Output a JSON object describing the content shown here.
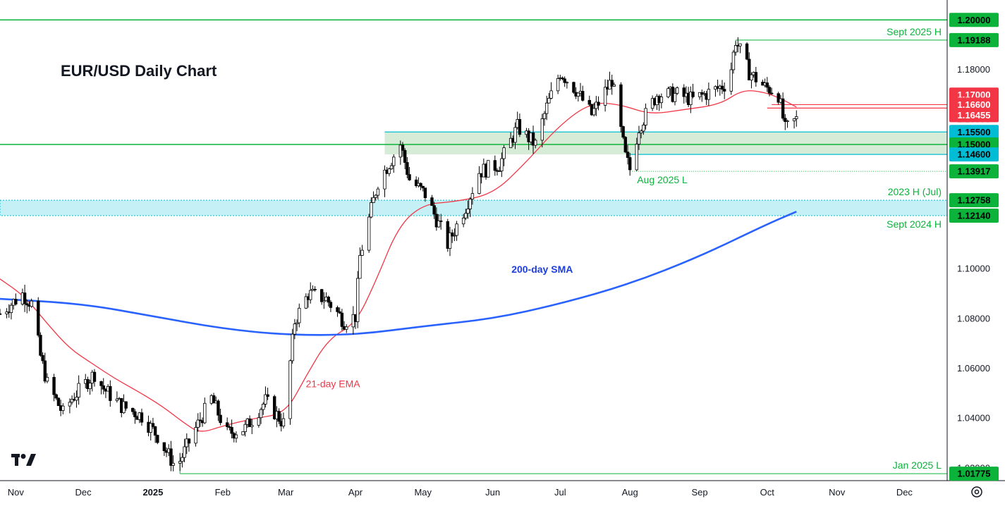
{
  "chart_data": {
    "type": "candlestick",
    "title": "EUR/USD Daily Chart",
    "ylim": [
      1.015,
      1.208
    ],
    "xlim": [
      "2024-10-25",
      "2025-12-20"
    ],
    "y_ticks": [
      "1.20000",
      "1.18000",
      "1.16000",
      "1.14000",
      "1.12000",
      "1.10000",
      "1.08000",
      "1.06000",
      "1.04000",
      "1.02000"
    ],
    "x_ticks": [
      {
        "date": "2024-11-01",
        "label": "Nov",
        "bold": false
      },
      {
        "date": "2024-12-01",
        "label": "Dec",
        "bold": false
      },
      {
        "date": "2025-01-01",
        "label": "2025",
        "bold": true
      },
      {
        "date": "2025-02-01",
        "label": "Feb",
        "bold": false
      },
      {
        "date": "2025-03-01",
        "label": "Mar",
        "bold": false
      },
      {
        "date": "2025-04-01",
        "label": "Apr",
        "bold": false
      },
      {
        "date": "2025-05-01",
        "label": "May",
        "bold": false
      },
      {
        "date": "2025-06-01",
        "label": "Jun",
        "bold": false
      },
      {
        "date": "2025-07-01",
        "label": "Jul",
        "bold": false
      },
      {
        "date": "2025-08-01",
        "label": "Aug",
        "bold": false
      },
      {
        "date": "2025-09-01",
        "label": "Sep",
        "bold": false
      },
      {
        "date": "2025-10-01",
        "label": "Oct",
        "bold": false
      },
      {
        "date": "2025-11-01",
        "label": "Nov",
        "bold": false
      },
      {
        "date": "2025-12-01",
        "label": "Dec",
        "bold": false
      }
    ],
    "price_path": [
      [
        "2024-10-25",
        1.082
      ],
      [
        "2024-11-04",
        1.09
      ],
      [
        "2024-11-08",
        1.086
      ],
      [
        "2024-11-12",
        1.065
      ],
      [
        "2024-11-15",
        1.054
      ],
      [
        "2024-11-22",
        1.042
      ],
      [
        "2024-11-26",
        1.048
      ],
      [
        "2024-12-06",
        1.058
      ],
      [
        "2024-12-10",
        1.052
      ],
      [
        "2024-12-18",
        1.045
      ],
      [
        "2024-12-27",
        1.041
      ],
      [
        "2025-01-03",
        1.033
      ],
      [
        "2025-01-10",
        1.022
      ],
      [
        "2025-01-13",
        1.023
      ],
      [
        "2025-01-20",
        1.036
      ],
      [
        "2025-01-27",
        1.048
      ],
      [
        "2025-02-03",
        1.034
      ],
      [
        "2025-02-11",
        1.036
      ],
      [
        "2025-02-20",
        1.047
      ],
      [
        "2025-02-28",
        1.038
      ],
      [
        "2025-03-05",
        1.079
      ],
      [
        "2025-03-11",
        1.09
      ],
      [
        "2025-03-19",
        1.088
      ],
      [
        "2025-03-27",
        1.079
      ],
      [
        "2025-04-01",
        1.081
      ],
      [
        "2025-04-03",
        1.105
      ],
      [
        "2025-04-11",
        1.135
      ],
      [
        "2025-04-21",
        1.15
      ],
      [
        "2025-04-25",
        1.136
      ],
      [
        "2025-05-02",
        1.13
      ],
      [
        "2025-05-12",
        1.11
      ],
      [
        "2025-05-20",
        1.125
      ],
      [
        "2025-05-26",
        1.139
      ],
      [
        "2025-06-04",
        1.142
      ],
      [
        "2025-06-12",
        1.157
      ],
      [
        "2025-06-20",
        1.15
      ],
      [
        "2025-06-25",
        1.165
      ],
      [
        "2025-07-01",
        1.179
      ],
      [
        "2025-07-08",
        1.172
      ],
      [
        "2025-07-15",
        1.162
      ],
      [
        "2025-07-24",
        1.176
      ],
      [
        "2025-07-30",
        1.145
      ],
      [
        "2025-08-01",
        1.14
      ],
      [
        "2025-08-05",
        1.157
      ],
      [
        "2025-08-13",
        1.17
      ],
      [
        "2025-08-22",
        1.17
      ],
      [
        "2025-08-29",
        1.168
      ],
      [
        "2025-09-08",
        1.172
      ],
      [
        "2025-09-14",
        1.175
      ],
      [
        "2025-09-17",
        1.1919
      ],
      [
        "2025-09-23",
        1.179
      ],
      [
        "2025-09-30",
        1.173
      ],
      [
        "2025-10-03",
        1.172
      ],
      [
        "2025-10-06",
        1.17
      ],
      [
        "2025-10-09",
        1.156
      ],
      [
        "2025-10-14",
        1.16
      ]
    ],
    "series": [
      {
        "name": "21-day EMA",
        "color": "#f23645",
        "values": [
          [
            "2024-10-25",
            1.096
          ],
          [
            "2024-11-05",
            1.089
          ],
          [
            "2024-11-15",
            1.078
          ],
          [
            "2024-11-25",
            1.068
          ],
          [
            "2024-12-05",
            1.062
          ],
          [
            "2024-12-15",
            1.056
          ],
          [
            "2024-12-25",
            1.051
          ],
          [
            "2025-01-05",
            1.045
          ],
          [
            "2025-01-15",
            1.038
          ],
          [
            "2025-01-22",
            1.034
          ],
          [
            "2025-02-01",
            1.037
          ],
          [
            "2025-02-15",
            1.04
          ],
          [
            "2025-03-01",
            1.042
          ],
          [
            "2025-03-10",
            1.057
          ],
          [
            "2025-03-20",
            1.072
          ],
          [
            "2025-04-01",
            1.078
          ],
          [
            "2025-04-10",
            1.095
          ],
          [
            "2025-04-20",
            1.117
          ],
          [
            "2025-05-01",
            1.126
          ],
          [
            "2025-05-15",
            1.127
          ],
          [
            "2025-06-01",
            1.13
          ],
          [
            "2025-06-15",
            1.142
          ],
          [
            "2025-07-01",
            1.158
          ],
          [
            "2025-07-15",
            1.167
          ],
          [
            "2025-07-28",
            1.166
          ],
          [
            "2025-08-10",
            1.162
          ],
          [
            "2025-08-25",
            1.164
          ],
          [
            "2025-09-10",
            1.166
          ],
          [
            "2025-09-20",
            1.172
          ],
          [
            "2025-09-30",
            1.171
          ],
          [
            "2025-10-08",
            1.168
          ],
          [
            "2025-10-14",
            1.165
          ]
        ]
      },
      {
        "name": "200-day SMA",
        "color": "#2962ff",
        "values": [
          [
            "2024-10-25",
            1.088
          ],
          [
            "2024-12-01",
            1.086
          ],
          [
            "2025-01-01",
            1.081
          ],
          [
            "2025-02-01",
            1.076
          ],
          [
            "2025-03-01",
            1.0735
          ],
          [
            "2025-04-01",
            1.0735
          ],
          [
            "2025-05-01",
            1.077
          ],
          [
            "2025-06-01",
            1.08
          ],
          [
            "2025-07-01",
            1.086
          ],
          [
            "2025-08-01",
            1.094
          ],
          [
            "2025-09-01",
            1.105
          ],
          [
            "2025-10-01",
            1.118
          ],
          [
            "2025-10-14",
            1.123
          ]
        ]
      }
    ],
    "series_labels": [
      {
        "text": "21-day EMA",
        "color": "#f23645",
        "date": "2025-03-22",
        "price": 1.0525
      },
      {
        "text": "200-day SMA",
        "color": "#1e3fd6",
        "date": "2025-06-23",
        "price": 1.0985
      }
    ],
    "horizontal_lines": [
      {
        "price": 1.2,
        "color": "#0bb33b",
        "from": "2024-10-25",
        "to": "2025-12-20",
        "width": 1.5
      },
      {
        "price": 1.15,
        "color": "#0bb33b",
        "from": "2024-10-25",
        "to": "2025-12-20",
        "width": 1.5
      },
      {
        "price": 1.1919,
        "color": "#0bb33b",
        "from": "2025-09-17",
        "to": "2025-12-20",
        "width": 1
      },
      {
        "price": 1.155,
        "color": "#00bcd4",
        "from": "2025-04-14",
        "to": "2025-12-20",
        "width": 1.2
      },
      {
        "price": 1.146,
        "color": "#00bcd4",
        "from": "2025-08-01",
        "to": "2025-12-20",
        "width": 1.2
      },
      {
        "price": 1.166,
        "color": "#f23645",
        "from": "2025-10-03",
        "to": "2025-12-20",
        "width": 1.2
      },
      {
        "price": 1.1646,
        "color": "#f23645",
        "from": "2025-10-01",
        "to": "2025-12-20",
        "width": 1.2
      },
      {
        "price": 1.1392,
        "color": "#0bb33b",
        "from": "2025-08-01",
        "to": "2025-12-20",
        "width": 1,
        "dash": "1,2"
      },
      {
        "price": 1.0178,
        "color": "#0bb33b",
        "from": "2025-01-13",
        "to": "2025-12-20",
        "width": 1
      }
    ],
    "zones": [
      {
        "from_price": 1.146,
        "to_price": 1.155,
        "from": "2025-04-14",
        "to": "2025-12-20",
        "fill": "#c8e6c9",
        "stroke": ""
      },
      {
        "from_price": 1.1214,
        "to_price": 1.1276,
        "from": "2024-10-25",
        "to": "2025-12-20",
        "fill": "#b2ebf2",
        "stroke": "#00bcd4"
      }
    ],
    "level_annotations": [
      {
        "text": "Sept 2025 H",
        "price": 1.1919
      },
      {
        "text": "Aug 2025 L",
        "price": 1.1392,
        "date": "2025-08-01"
      },
      {
        "text": "2023 H (Jul)",
        "price": 1.1276
      },
      {
        "text": "Sept 2024 H",
        "price": 1.1214
      },
      {
        "text": "Jan 2025 L",
        "price": 1.0178
      }
    ],
    "price_tags": [
      {
        "label": "1.20000",
        "price": 1.2,
        "bg": "#0bb33b",
        "fg": "#000000"
      },
      {
        "label": "1.19188",
        "price": 1.1919,
        "bg": "#0bb33b",
        "fg": "#000000"
      },
      {
        "label": "1.17000",
        "price": 1.17,
        "bg": "#f23645",
        "fg": "#ffffff"
      },
      {
        "label": "1.16600",
        "price": 1.166,
        "bg": "#f23645",
        "fg": "#ffffff"
      },
      {
        "label": "1.16455",
        "price": 1.1646,
        "bg": "#f23645",
        "fg": "#ffffff",
        "offset": 10
      },
      {
        "label": "1.15500",
        "price": 1.155,
        "bg": "#00bcd4",
        "fg": "#000000"
      },
      {
        "label": "1.15000",
        "price": 1.15,
        "bg": "#0bb33b",
        "fg": "#000000"
      },
      {
        "label": "1.14600",
        "price": 1.146,
        "bg": "#00bcd4",
        "fg": "#000000"
      },
      {
        "label": "1.13917",
        "price": 1.1392,
        "bg": "#0bb33b",
        "fg": "#000000"
      },
      {
        "label": "1.12758",
        "price": 1.1276,
        "bg": "#0bb33b",
        "fg": "#000000"
      },
      {
        "label": "1.12140",
        "price": 1.1214,
        "bg": "#0bb33b",
        "fg": "#000000"
      },
      {
        "label": "1.01775",
        "price": 1.0178,
        "bg": "#0bb33b",
        "fg": "#000000"
      }
    ],
    "colors": {
      "up": "#ffffff",
      "down": "#000000",
      "candle_border": "#000000",
      "text_green": "#0bb33b"
    }
  },
  "branding": {
    "logo": "tradingview-logo"
  },
  "toolbar": {
    "settings_icon": "gear-icon"
  }
}
